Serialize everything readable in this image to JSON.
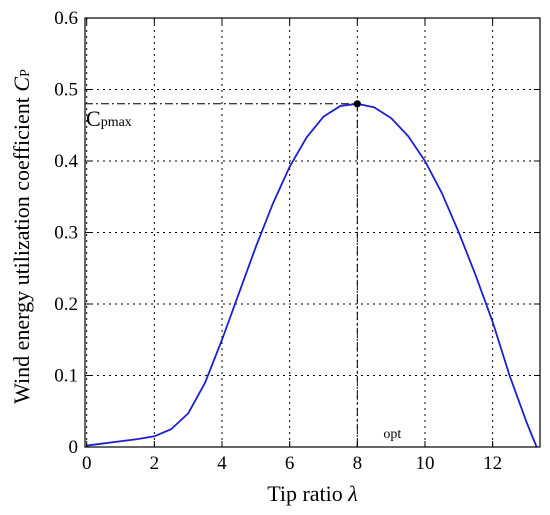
{
  "chart_data": {
    "type": "line",
    "xlabel_prefix": "Tip ratio ",
    "xlabel_symbol": "λ",
    "ylabel_prefix": "Wind energy utilization coefficient ",
    "ylabel_symbol": "C",
    "ylabel_subscript": "P",
    "xlim": [
      -0.05,
      13.4
    ],
    "ylim": [
      0,
      0.6
    ],
    "x_ticks": [
      0,
      2,
      4,
      6,
      8,
      10,
      12
    ],
    "x_tick_labels": [
      "0",
      "2",
      "4",
      "6",
      "8",
      "10",
      "12"
    ],
    "y_ticks": [
      0,
      0.1,
      0.2,
      0.3,
      0.4,
      0.5,
      0.6
    ],
    "y_tick_labels": [
      "0",
      "0.1",
      "0.2",
      "0.3",
      "0.4",
      "0.5",
      "0.6"
    ],
    "grid": true,
    "series": [
      {
        "color": "#1f1fd0",
        "x": [
          0,
          0.5,
          1,
          1.5,
          2,
          2.5,
          3,
          3.5,
          4,
          4.5,
          5,
          5.5,
          6,
          6.5,
          7,
          7.5,
          8,
          8.5,
          9,
          9.5,
          10,
          10.5,
          11,
          11.5,
          12,
          12.5,
          13,
          13.3
        ],
        "y": [
          0.002,
          0.005,
          0.008,
          0.011,
          0.015,
          0.025,
          0.047,
          0.09,
          0.15,
          0.215,
          0.28,
          0.34,
          0.392,
          0.433,
          0.462,
          0.477,
          0.48,
          0.475,
          0.46,
          0.435,
          0.4,
          0.355,
          0.3,
          0.24,
          0.175,
          0.1,
          0.035,
          0.0
        ]
      }
    ],
    "optimum_point": {
      "x": 8,
      "y": 0.48
    },
    "annotations": {
      "cpmax_main": "C",
      "cpmax_sub": "pmax",
      "opt_label": "opt"
    }
  }
}
